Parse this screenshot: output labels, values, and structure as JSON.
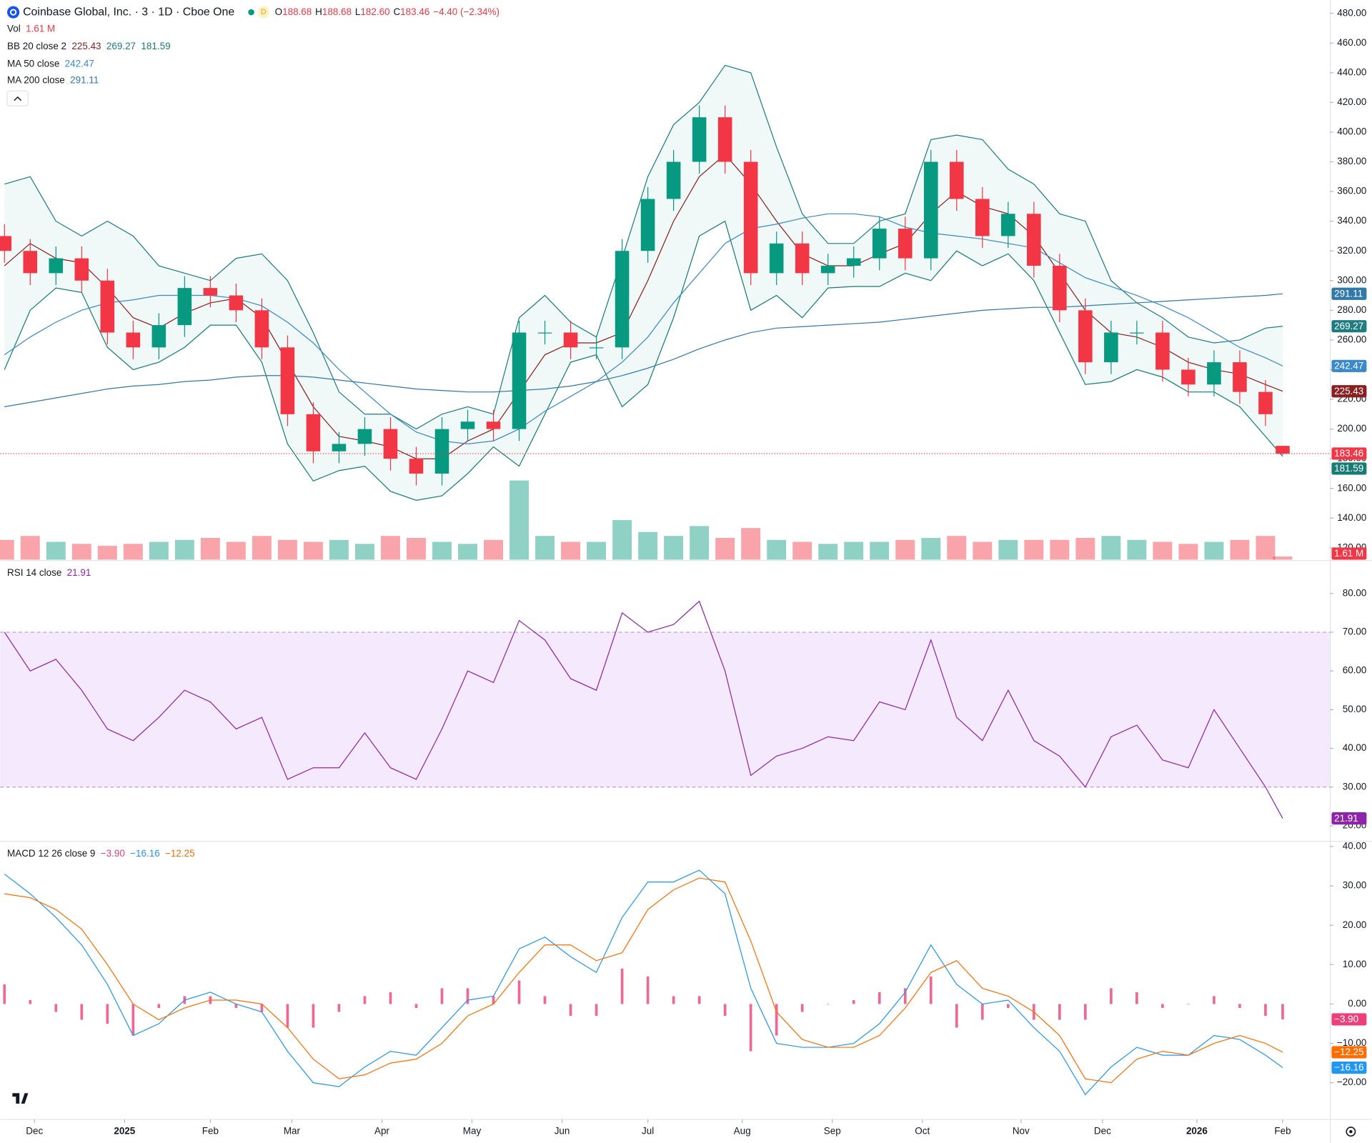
{
  "chart_data": [
    {
      "type": "candlestick",
      "title": "Coinbase Global, Inc. · 3 · 1D · Cboe One",
      "header": {
        "labels": [
          "O",
          "H",
          "L",
          "C"
        ],
        "open": "188.68",
        "high": "188.68",
        "low": "182.60",
        "close": "183.46",
        "change": "−4.40 (−2.34%)"
      },
      "x": [
        0,
        6,
        12,
        18,
        24,
        30,
        36,
        42,
        48,
        54,
        60,
        66,
        72,
        78,
        84,
        90,
        96,
        102,
        108,
        114,
        120,
        126,
        132,
        138,
        144,
        150,
        156,
        162,
        168,
        174,
        180,
        186,
        192,
        198,
        204,
        210,
        216,
        222,
        228,
        234,
        240,
        246,
        252,
        258,
        264,
        270,
        276,
        282,
        288,
        294,
        298
      ],
      "xlim": [
        -1,
        309
      ],
      "xticks": [
        {
          "value": 7,
          "label": "Dec"
        },
        {
          "value": 28,
          "label": "2025"
        },
        {
          "value": 48,
          "label": "Feb"
        },
        {
          "value": 67,
          "label": "Mar"
        },
        {
          "value": 88,
          "label": "Apr"
        },
        {
          "value": 109,
          "label": "May"
        },
        {
          "value": 130,
          "label": "Jun"
        },
        {
          "value": 150,
          "label": "Jul"
        },
        {
          "value": 172,
          "label": "Aug"
        },
        {
          "value": 193,
          "label": "Sep"
        },
        {
          "value": 214,
          "label": "Oct"
        },
        {
          "value": 237,
          "label": "Nov"
        },
        {
          "value": 256,
          "label": "Dec"
        },
        {
          "value": 278,
          "label": "2026"
        },
        {
          "value": 298,
          "label": "Feb"
        }
      ],
      "open": [
        330,
        320,
        305,
        315,
        300,
        265,
        255,
        270,
        295,
        290,
        280,
        255,
        210,
        185,
        190,
        200,
        180,
        170,
        200,
        205,
        200,
        265,
        265,
        255,
        255,
        320,
        355,
        380,
        410,
        380,
        305,
        325,
        305,
        310,
        315,
        335,
        315,
        380,
        355,
        330,
        345,
        310,
        280,
        245,
        265,
        265,
        240,
        230,
        245,
        225,
        188.68
      ],
      "high": [
        338,
        328,
        323,
        323,
        308,
        273,
        278,
        303,
        303,
        298,
        288,
        263,
        218,
        198,
        208,
        208,
        188,
        208,
        213,
        213,
        273,
        273,
        273,
        263,
        328,
        363,
        388,
        418,
        418,
        388,
        333,
        333,
        318,
        323,
        343,
        343,
        388,
        388,
        363,
        353,
        353,
        318,
        288,
        273,
        273,
        273,
        248,
        253,
        253,
        233,
        188.68
      ],
      "low": [
        312,
        297,
        297,
        292,
        257,
        247,
        247,
        262,
        282,
        272,
        247,
        202,
        177,
        177,
        182,
        172,
        162,
        162,
        192,
        192,
        192,
        257,
        247,
        247,
        247,
        312,
        347,
        372,
        372,
        297,
        297,
        297,
        297,
        302,
        307,
        307,
        307,
        347,
        322,
        322,
        302,
        272,
        237,
        237,
        257,
        232,
        222,
        222,
        217,
        202,
        182.6
      ],
      "close": [
        320,
        305,
        315,
        300,
        265,
        255,
        270,
        295,
        290,
        280,
        255,
        210,
        185,
        190,
        200,
        180,
        170,
        200,
        205,
        200,
        265,
        265,
        255,
        255,
        320,
        355,
        380,
        410,
        380,
        305,
        325,
        305,
        310,
        315,
        335,
        315,
        380,
        355,
        330,
        345,
        310,
        280,
        245,
        265,
        265,
        240,
        230,
        245,
        225,
        210,
        183.46
      ],
      "up_color": "#089981",
      "down_color": "#f23645",
      "ylim": [
        112,
        489
      ],
      "yticks": [
        {
          "value": 120,
          "label": "120.00"
        },
        {
          "value": 140,
          "label": "140.00"
        },
        {
          "value": 160,
          "label": "160.00"
        },
        {
          "value": 180,
          "label": "180.00"
        },
        {
          "value": 200,
          "label": "200.00"
        },
        {
          "value": 220,
          "label": "220.00"
        },
        {
          "value": 240,
          "label": "240.00"
        },
        {
          "value": 260,
          "label": "260.00"
        },
        {
          "value": 280,
          "label": "280.00"
        },
        {
          "value": 300,
          "label": "300.00"
        },
        {
          "value": 320,
          "label": "320.00"
        },
        {
          "value": 340,
          "label": "340.00"
        },
        {
          "value": 360,
          "label": "360.00"
        },
        {
          "value": 380,
          "label": "380.00"
        },
        {
          "value": 400,
          "label": "400.00"
        },
        {
          "value": 420,
          "label": "420.00"
        },
        {
          "value": 440,
          "label": "440.00"
        },
        {
          "value": 460,
          "label": "460.00"
        },
        {
          "value": 480,
          "label": "480.00"
        }
      ],
      "volume": {
        "name": "Vol",
        "last_label": "1.61 M",
        "ylim": [
          0,
          53
        ],
        "values": [
          10,
          12,
          9,
          8,
          7,
          8,
          9,
          10,
          11,
          9,
          12,
          10,
          9,
          10,
          8,
          12,
          11,
          9,
          8,
          10,
          40,
          12,
          9,
          9,
          20,
          14,
          12,
          17,
          11,
          16,
          10,
          9,
          8,
          9,
          9,
          10,
          11,
          12,
          9,
          10,
          10,
          10,
          11,
          12,
          10,
          9,
          8,
          9,
          10,
          12,
          1.61
        ]
      },
      "bb": {
        "name": "BB 20 close 2",
        "fill": "#26a69a",
        "basis": {
          "color": "#8b1e1e",
          "values": [
            310,
            325,
            315,
            312,
            295,
            275,
            268,
            278,
            285,
            288,
            275,
            245,
            215,
            195,
            192,
            188,
            180,
            180,
            192,
            200,
            225,
            250,
            258,
            258,
            265,
            300,
            340,
            370,
            385,
            365,
            340,
            318,
            310,
            310,
            318,
            325,
            345,
            360,
            350,
            345,
            330,
            305,
            280,
            265,
            262,
            255,
            245,
            240,
            237,
            230,
            225.43
          ]
        },
        "upper": {
          "color": "#1e7d80",
          "values": [
            365,
            370,
            340,
            330,
            340,
            330,
            310,
            305,
            300,
            315,
            318,
            300,
            265,
            225,
            210,
            210,
            200,
            210,
            215,
            210,
            275,
            290,
            272,
            262,
            315,
            370,
            405,
            420,
            445,
            440,
            390,
            345,
            325,
            325,
            340,
            345,
            395,
            398,
            395,
            375,
            365,
            345,
            340,
            300,
            285,
            275,
            262,
            258,
            260,
            268,
            269.27
          ]
        },
        "lower": {
          "color": "#177c73",
          "values": [
            240,
            280,
            295,
            292,
            255,
            240,
            245,
            255,
            270,
            270,
            245,
            190,
            165,
            172,
            175,
            158,
            152,
            155,
            170,
            188,
            175,
            210,
            245,
            250,
            215,
            230,
            275,
            330,
            340,
            280,
            290,
            275,
            295,
            296,
            296,
            305,
            300,
            320,
            310,
            318,
            300,
            265,
            230,
            232,
            240,
            235,
            225,
            225,
            215,
            195,
            181.59
          ]
        }
      },
      "ma50": {
        "name": "MA 50 close",
        "color": "#3a8ac9",
        "values": [
          250,
          262,
          272,
          280,
          285,
          287,
          290,
          290,
          290,
          288,
          283,
          272,
          258,
          240,
          225,
          210,
          198,
          192,
          190,
          192,
          200,
          212,
          222,
          232,
          245,
          262,
          285,
          305,
          325,
          335,
          338,
          342,
          345,
          345,
          343,
          336,
          332,
          330,
          328,
          325,
          322,
          312,
          302,
          296,
          290,
          283,
          275,
          265,
          255,
          248,
          242.47
        ]
      },
      "ma200": {
        "name": "MA 200 close",
        "color": "#3179a8",
        "values": [
          215,
          218,
          221,
          224,
          227,
          229,
          230,
          232,
          233,
          235,
          236,
          236,
          235,
          233,
          231,
          229,
          227,
          226,
          225,
          225,
          226,
          227,
          229,
          232,
          236,
          241,
          247,
          254,
          260,
          265,
          268,
          269,
          270,
          271,
          272,
          274,
          276,
          278,
          280,
          281,
          282,
          282,
          283,
          284,
          285,
          286,
          287,
          288,
          289,
          290,
          291.11
        ]
      }
    },
    {
      "type": "line",
      "name": "RSI 14 close",
      "color": "#8e24aa",
      "band": [
        30,
        70
      ],
      "band_color": "#f3e5fc",
      "values": [
        70,
        60,
        63,
        55,
        45,
        42,
        48,
        55,
        52,
        45,
        48,
        32,
        35,
        35,
        44,
        35,
        32,
        45,
        60,
        57,
        73,
        68,
        58,
        55,
        75,
        70,
        72,
        78,
        60,
        33,
        38,
        40,
        43,
        42,
        52,
        50,
        68,
        48,
        42,
        55,
        42,
        38,
        30,
        43,
        46,
        37,
        35,
        50,
        40,
        30,
        21.91
      ],
      "ylim": [
        16,
        88.5
      ],
      "yticks": [
        {
          "value": 20,
          "label": "20.00"
        },
        {
          "value": 30,
          "label": "30.00"
        },
        {
          "value": 40,
          "label": "40.00"
        },
        {
          "value": 50,
          "label": "50.00"
        },
        {
          "value": 60,
          "label": "60.00"
        },
        {
          "value": 70,
          "label": "70.00"
        },
        {
          "value": 80,
          "label": "80.00"
        }
      ]
    },
    {
      "type": "macd",
      "name": "MACD 12 26 close 9",
      "histogram": {
        "color": "#ec407a",
        "last_label": "−3.90",
        "values": [
          5,
          1,
          -2,
          -4,
          -5,
          -8,
          -1,
          2,
          2,
          -1,
          -2,
          -6,
          -6,
          -2,
          2,
          3,
          -1,
          4,
          4,
          2,
          6,
          2,
          -3,
          -3,
          9,
          7,
          2,
          2,
          -3,
          -12,
          -8,
          -2,
          0,
          1,
          3,
          4,
          7,
          -6,
          -4,
          -1,
          -4,
          -4,
          -4,
          4,
          3,
          -1,
          0,
          2,
          -1,
          -3,
          -3.9
        ]
      },
      "macd": {
        "color": "#2196f3",
        "last_label": "−16.16",
        "values": [
          33,
          28,
          22,
          15,
          5,
          -8,
          -5,
          1,
          3,
          0,
          -2,
          -12,
          -20,
          -21,
          -16,
          -12,
          -13,
          -6,
          1,
          2,
          14,
          17,
          12,
          8,
          22,
          31,
          31,
          34,
          28,
          4,
          -10,
          -11,
          -11,
          -10,
          -5,
          3,
          15,
          5,
          0,
          1,
          -6,
          -12,
          -23,
          -16,
          -11,
          -13,
          -13,
          -8,
          -9,
          -13,
          -16.16
        ]
      },
      "signal": {
        "color": "#ff6d00",
        "last_label": "−12.25",
        "values": [
          28,
          27,
          24,
          19,
          10,
          0,
          -4,
          -1,
          1,
          1,
          0,
          -6,
          -14,
          -19,
          -18,
          -15,
          -14,
          -10,
          -3,
          0,
          8,
          15,
          15,
          11,
          13,
          24,
          29,
          32,
          31,
          16,
          -2,
          -9,
          -11,
          -11,
          -8,
          -1,
          8,
          11,
          4,
          2,
          -2,
          -8,
          -19,
          -20,
          -14,
          -12,
          -13,
          -10,
          -8,
          -10,
          -12.25
        ]
      },
      "ylim": [
        -29.3,
        41.1
      ],
      "yticks": [
        {
          "value": -20,
          "label": "−20.00"
        },
        {
          "value": -10,
          "label": "−10.00"
        },
        {
          "value": 0,
          "label": "0.00"
        },
        {
          "value": 10,
          "label": "10.00"
        },
        {
          "value": 20,
          "label": "20.00"
        },
        {
          "value": 30,
          "label": "30.00"
        },
        {
          "value": 40,
          "label": "40.00"
        }
      ]
    }
  ]
}
